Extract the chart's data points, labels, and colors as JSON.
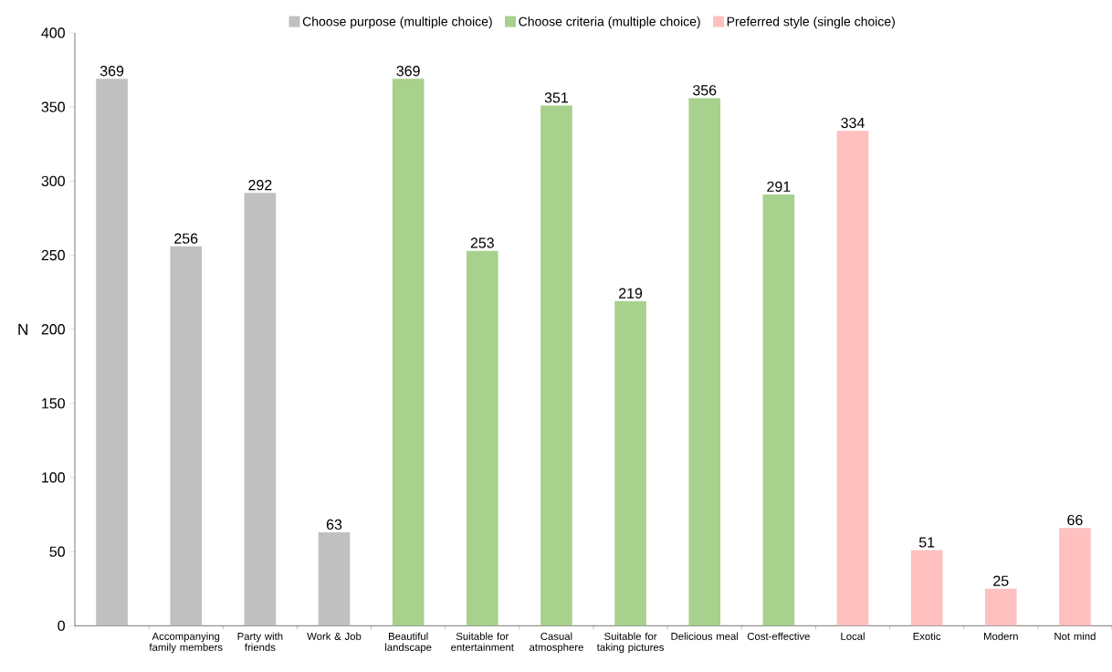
{
  "chart_data": {
    "type": "bar",
    "ylabel": "N",
    "categories": [
      null,
      "Accompanying family members",
      "Party with friends",
      "Work & Job",
      "Beautiful landscape",
      "Suitable for entertainment",
      "Casual atmosphere",
      "Suitable for taking pictures",
      "Delicious meal",
      "Cost-effective",
      "Local",
      "Exotic",
      "Modern",
      "Not mind"
    ],
    "series": [
      {
        "name": "Choose purpose (multiple choice)",
        "color": "#c0c0c0",
        "values": [
          369,
          256,
          292,
          63,
          null,
          null,
          null,
          null,
          null,
          null,
          null,
          null,
          null,
          null
        ]
      },
      {
        "name": "Choose criteria (multiple choice)",
        "color": "#a9d18e",
        "values": [
          null,
          null,
          null,
          null,
          369,
          253,
          351,
          219,
          356,
          291,
          null,
          null,
          null,
          null
        ]
      },
      {
        "name": "Preferred style (single choice)",
        "color": "#ffc0c0",
        "values": [
          null,
          null,
          null,
          null,
          null,
          null,
          null,
          null,
          null,
          null,
          334,
          51,
          25,
          66
        ]
      }
    ],
    "ylim": [
      0,
      400
    ],
    "yticks": [
      0,
      50,
      100,
      150,
      200,
      250,
      300,
      350,
      400
    ],
    "data_labels": true,
    "legend": "top",
    "grid": false
  }
}
